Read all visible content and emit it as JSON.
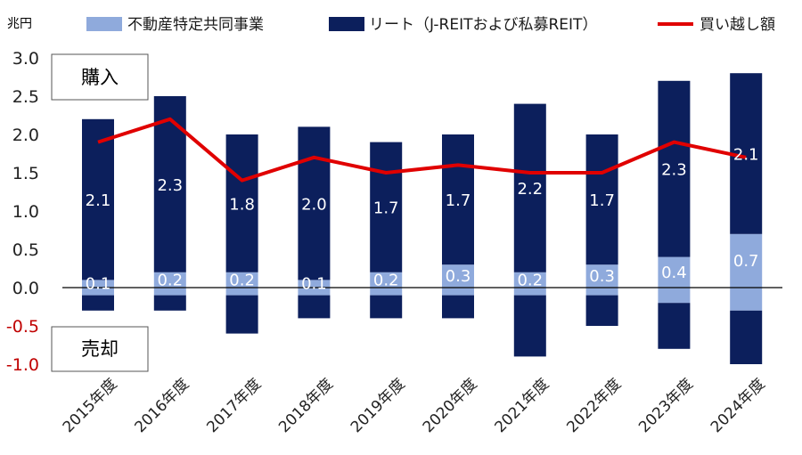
{
  "chart_data": {
    "type": "bar",
    "unit_label": "兆円",
    "categories": [
      "2015年度",
      "2016年度",
      "2017年度",
      "2018年度",
      "2019年度",
      "2020年度",
      "2021年度",
      "2022年度",
      "2023年度",
      "2024年度"
    ],
    "ylim": [
      -1.0,
      3.0
    ],
    "yticks": [
      "3.0",
      "2.5",
      "2.0",
      "1.5",
      "1.0",
      "0.5",
      "0.0",
      "-0.5",
      "-1.0"
    ],
    "ytick_values": [
      3.0,
      2.5,
      2.0,
      1.5,
      1.0,
      0.5,
      0.0,
      -0.5,
      -1.0
    ],
    "negative_tick_color": "#c00000",
    "grid": false,
    "legend_position": "top",
    "series": [
      {
        "name": "不動産特定共同事業",
        "kind": "bar",
        "color": "#8faadc",
        "purchase": [
          0.1,
          0.2,
          0.2,
          0.1,
          0.2,
          0.3,
          0.2,
          0.3,
          0.4,
          0.7
        ],
        "sale": [
          -0.1,
          -0.1,
          -0.1,
          -0.1,
          -0.1,
          -0.1,
          -0.1,
          -0.1,
          -0.2,
          -0.3
        ],
        "labels": [
          "0.1",
          "0.2",
          "0.2",
          "0.1",
          "0.2",
          "0.3",
          "0.2",
          "0.3",
          "0.4",
          "0.7"
        ]
      },
      {
        "name": "リート（J-REITおよび私募REIT）",
        "kind": "bar",
        "color": "#0c1f5c",
        "purchase": [
          2.1,
          2.3,
          1.8,
          2.0,
          1.7,
          1.7,
          2.2,
          1.7,
          2.3,
          2.1
        ],
        "sale": [
          -0.2,
          -0.2,
          -0.5,
          -0.3,
          -0.3,
          -0.3,
          -0.8,
          -0.4,
          -0.6,
          -0.7
        ],
        "labels": [
          "2.1",
          "2.3",
          "1.8",
          "2.0",
          "1.7",
          "1.7",
          "2.2",
          "1.7",
          "2.3",
          "2.1"
        ]
      },
      {
        "name": "買い越し額",
        "kind": "line",
        "color": "#e00000",
        "values": [
          1.9,
          2.2,
          1.4,
          1.7,
          1.5,
          1.6,
          1.5,
          1.5,
          1.9,
          1.7
        ]
      }
    ],
    "annotations": {
      "purchase": "購入",
      "sale": "売却"
    }
  }
}
